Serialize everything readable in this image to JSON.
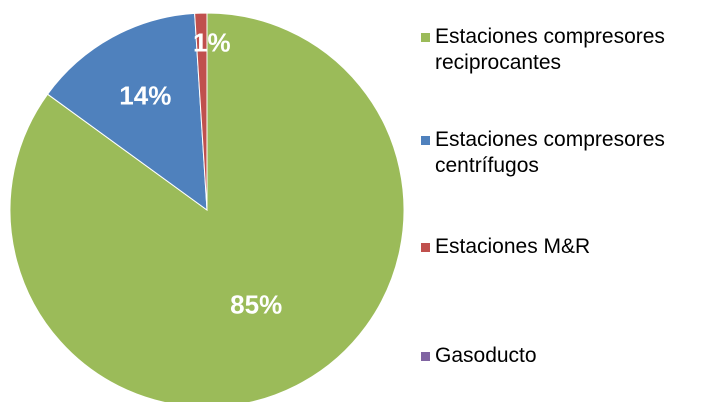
{
  "chart_data": {
    "type": "pie",
    "categories": [
      "Estaciones compresores reciprocantes",
      "Estaciones compresores centrífugos",
      "Estaciones M&R",
      "Gasoducto"
    ],
    "values": [
      85,
      14,
      1,
      0
    ],
    "value_labels": [
      "85%",
      "14%",
      "1%",
      null
    ],
    "colors": [
      "#9bbb59",
      "#4f81bd",
      "#c0504d",
      "#8064a2"
    ],
    "legend": "right"
  }
}
